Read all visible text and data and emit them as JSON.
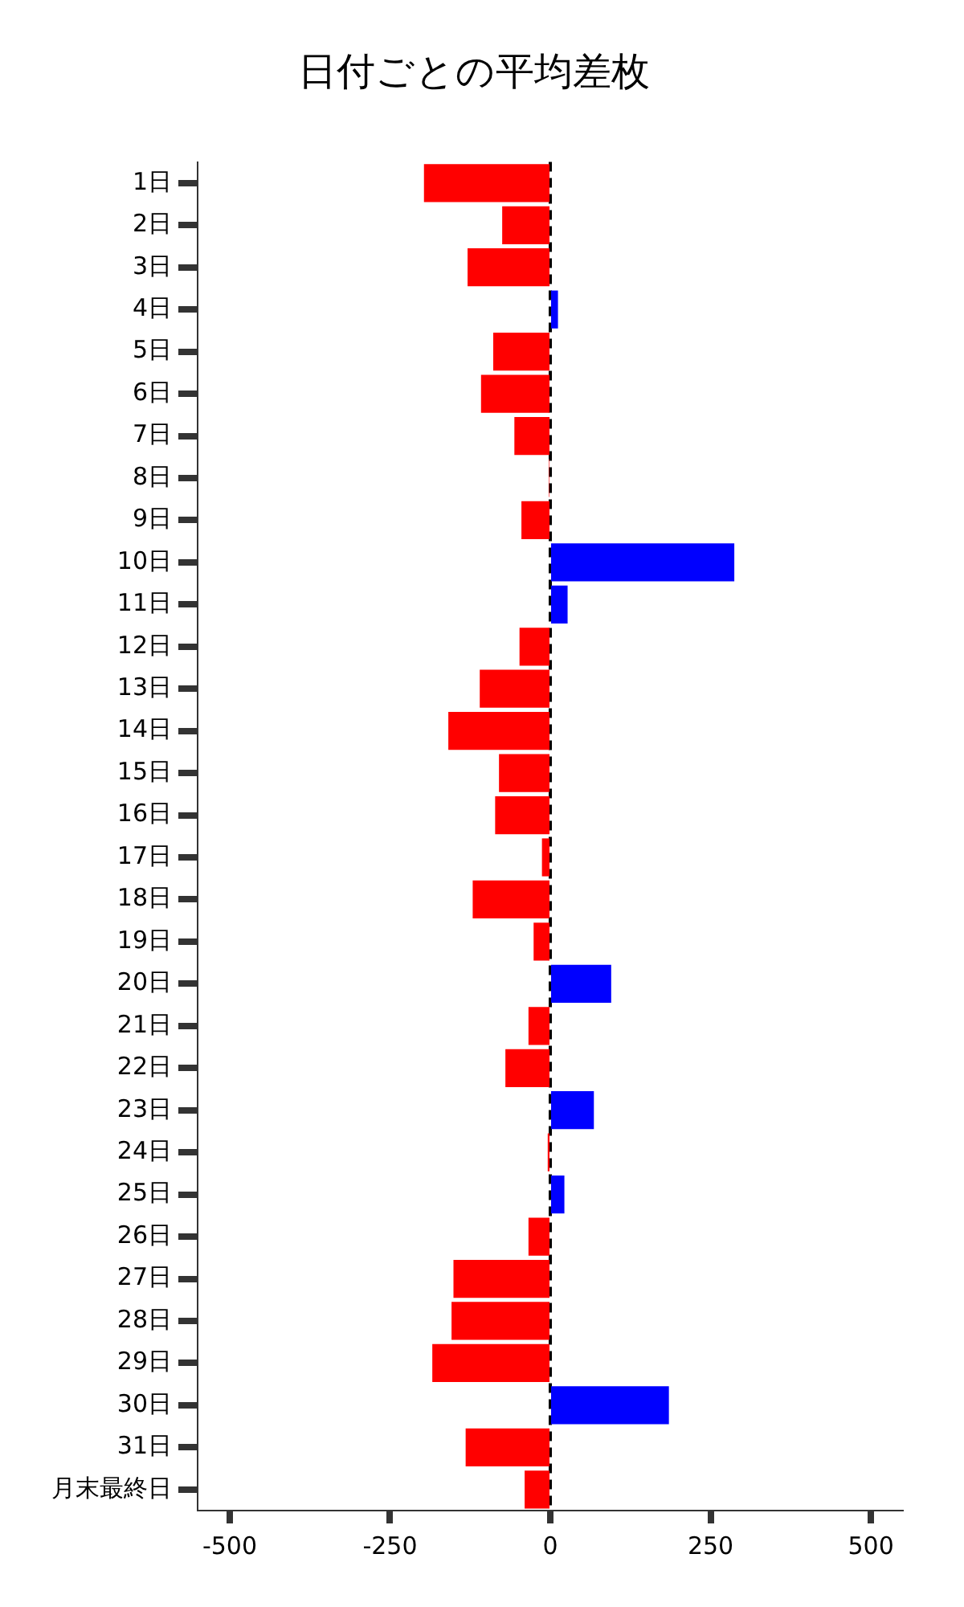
{
  "chart_data": {
    "type": "bar",
    "orientation": "horizontal",
    "title": "日付ごとの平均差枚",
    "categories": [
      "1日",
      "2日",
      "3日",
      "4日",
      "5日",
      "6日",
      "7日",
      "8日",
      "9日",
      "10日",
      "11日",
      "12日",
      "13日",
      "14日",
      "15日",
      "16日",
      "17日",
      "18日",
      "19日",
      "20日",
      "21日",
      "22日",
      "23日",
      "24日",
      "25日",
      "26日",
      "27日",
      "28日",
      "29日",
      "30日",
      "31日",
      "月末最終日"
    ],
    "values": [
      -197,
      -75,
      -129,
      12,
      -89,
      -108,
      -56,
      -2,
      -45,
      287,
      27,
      -48,
      -110,
      -159,
      -80,
      -86,
      -13,
      -121,
      -26,
      95,
      -34,
      -70,
      68,
      -4,
      22,
      -34,
      -151,
      -154,
      -184,
      185,
      -132,
      -40
    ],
    "colors": [
      "#ff0000",
      "#ff0000",
      "#ff0000",
      "#0000ff",
      "#ff0000",
      "#ff0000",
      "#ff0000",
      "#ff0000",
      "#ff0000",
      "#0000ff",
      "#0000ff",
      "#ff0000",
      "#ff0000",
      "#ff0000",
      "#ff0000",
      "#ff0000",
      "#ff0000",
      "#ff0000",
      "#ff0000",
      "#0000ff",
      "#ff0000",
      "#ff0000",
      "#0000ff",
      "#ff0000",
      "#0000ff",
      "#ff0000",
      "#ff0000",
      "#ff0000",
      "#ff0000",
      "#0000ff",
      "#ff0000",
      "#ff0000"
    ],
    "xlim": [
      -550,
      550
    ],
    "xticks": [
      -500,
      -250,
      0,
      250,
      500
    ],
    "ref_lines": [
      {
        "axis": "x",
        "value": 0,
        "color": "#000000",
        "line_style": "dashed"
      }
    ],
    "grid": false,
    "legend": false
  }
}
